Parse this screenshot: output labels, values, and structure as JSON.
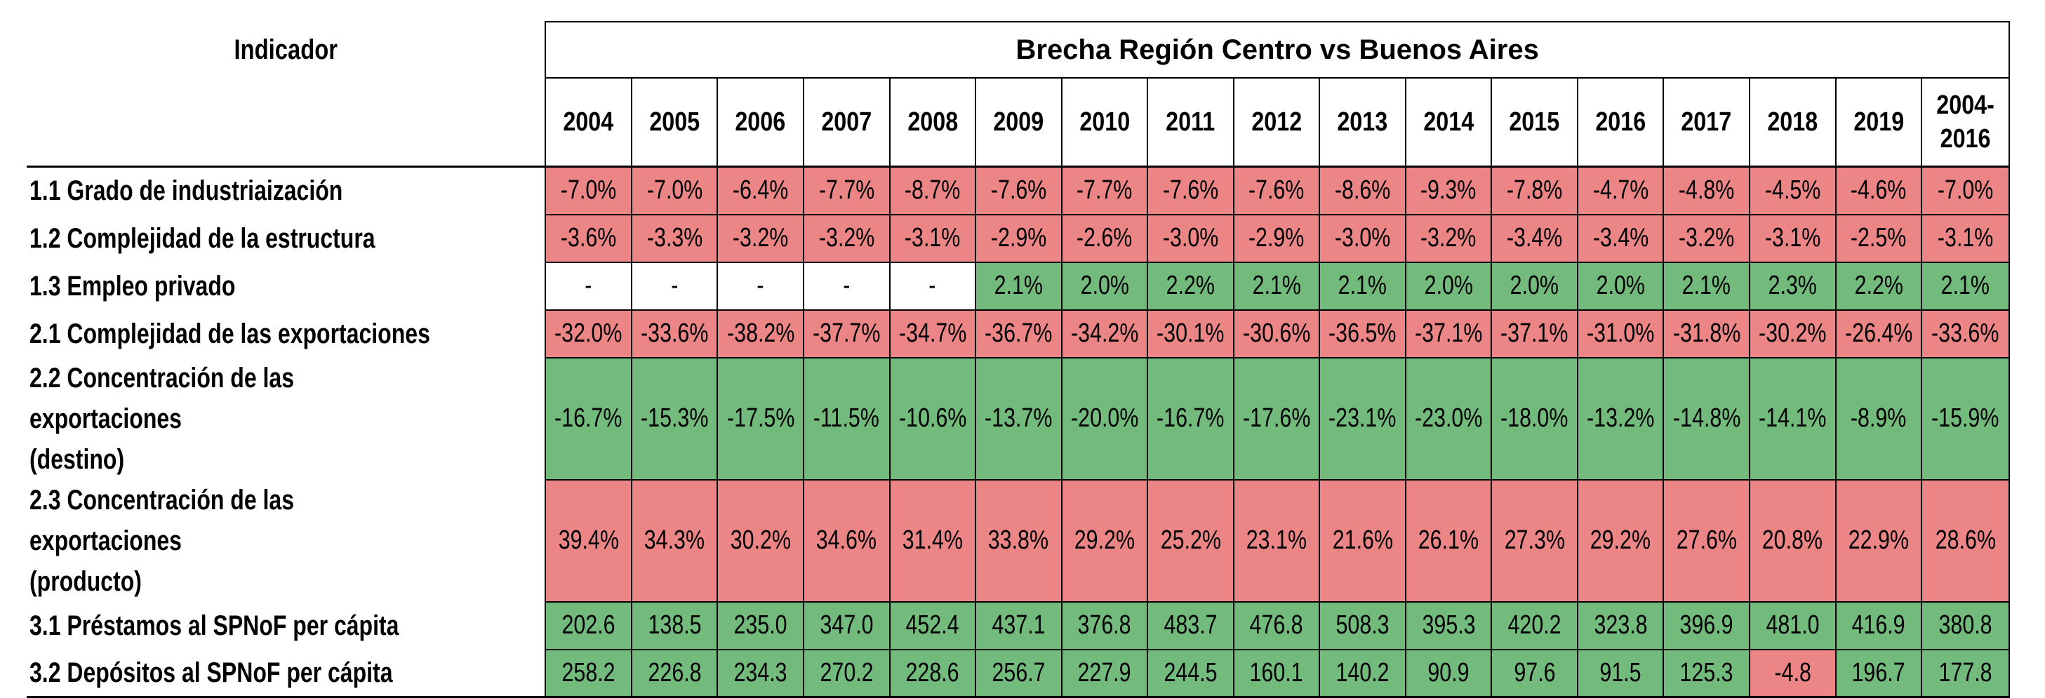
{
  "table": {
    "indicator_header": "Indicador",
    "group_header": "Brecha Región Centro vs Buenos Aires",
    "columns": [
      "2004",
      "2005",
      "2006",
      "2007",
      "2008",
      "2009",
      "2010",
      "2011",
      "2012",
      "2013",
      "2014",
      "2015",
      "2016",
      "2017",
      "2018",
      "2019",
      "2004-\n2016"
    ],
    "colors": {
      "red": "#ec8585",
      "green": "#72bb7c",
      "white": "#ffffff"
    },
    "rows": [
      {
        "label": "1.1 Grado de industriaización",
        "values": [
          "-7.0%",
          "-7.0%",
          "-6.4%",
          "-7.7%",
          "-8.7%",
          "-7.6%",
          "-7.7%",
          "-7.6%",
          "-7.6%",
          "-8.6%",
          "-9.3%",
          "-7.8%",
          "-4.7%",
          "-4.8%",
          "-4.5%",
          "-4.6%",
          "-7.0%"
        ],
        "colors": [
          "red",
          "red",
          "red",
          "red",
          "red",
          "red",
          "red",
          "red",
          "red",
          "red",
          "red",
          "red",
          "red",
          "red",
          "red",
          "red",
          "red"
        ]
      },
      {
        "label": "1.2 Complejidad de la estructura",
        "values": [
          "-3.6%",
          "-3.3%",
          "-3.2%",
          "-3.2%",
          "-3.1%",
          "-2.9%",
          "-2.6%",
          "-3.0%",
          "-2.9%",
          "-3.0%",
          "-3.2%",
          "-3.4%",
          "-3.4%",
          "-3.2%",
          "-3.1%",
          "-2.5%",
          "-3.1%"
        ],
        "colors": [
          "red",
          "red",
          "red",
          "red",
          "red",
          "red",
          "red",
          "red",
          "red",
          "red",
          "red",
          "red",
          "red",
          "red",
          "red",
          "red",
          "red"
        ]
      },
      {
        "label": "1.3 Empleo privado",
        "values": [
          "-",
          "-",
          "-",
          "-",
          "-",
          "2.1%",
          "2.0%",
          "2.2%",
          "2.1%",
          "2.1%",
          "2.0%",
          "2.0%",
          "2.0%",
          "2.1%",
          "2.3%",
          "2.2%",
          "2.1%"
        ],
        "colors": [
          "white",
          "white",
          "white",
          "white",
          "white",
          "green",
          "green",
          "green",
          "green",
          "green",
          "green",
          "green",
          "green",
          "green",
          "green",
          "green",
          "green"
        ]
      },
      {
        "label": "2.1 Complejidad de las exportaciones",
        "values": [
          "-32.0%",
          "-33.6%",
          "-38.2%",
          "-37.7%",
          "-34.7%",
          "-36.7%",
          "-34.2%",
          "-30.1%",
          "-30.6%",
          "-36.5%",
          "-37.1%",
          "-37.1%",
          "-31.0%",
          "-31.8%",
          "-30.2%",
          "-26.4%",
          "-33.6%"
        ],
        "colors": [
          "red",
          "red",
          "red",
          "red",
          "red",
          "red",
          "red",
          "red",
          "red",
          "red",
          "red",
          "red",
          "red",
          "red",
          "red",
          "red",
          "red"
        ]
      },
      {
        "label": "2.2 Concentración de las exportaciones\n(destino)",
        "values": [
          "-16.7%",
          "-15.3%",
          "-17.5%",
          "-11.5%",
          "-10.6%",
          "-13.7%",
          "-20.0%",
          "-16.7%",
          "-17.6%",
          "-23.1%",
          "-23.0%",
          "-18.0%",
          "-13.2%",
          "-14.8%",
          "-14.1%",
          "-8.9%",
          "-15.9%"
        ],
        "colors": [
          "green",
          "green",
          "green",
          "green",
          "green",
          "green",
          "green",
          "green",
          "green",
          "green",
          "green",
          "green",
          "green",
          "green",
          "green",
          "green",
          "green"
        ]
      },
      {
        "label": "2.3 Concentración de las exportaciones\n(producto)",
        "values": [
          "39.4%",
          "34.3%",
          "30.2%",
          "34.6%",
          "31.4%",
          "33.8%",
          "29.2%",
          "25.2%",
          "23.1%",
          "21.6%",
          "26.1%",
          "27.3%",
          "29.2%",
          "27.6%",
          "20.8%",
          "22.9%",
          "28.6%"
        ],
        "colors": [
          "red",
          "red",
          "red",
          "red",
          "red",
          "red",
          "red",
          "red",
          "red",
          "red",
          "red",
          "red",
          "red",
          "red",
          "red",
          "red",
          "red"
        ]
      },
      {
        "label": "3.1 Préstamos al SPNoF per cápita",
        "values": [
          "202.6",
          "138.5",
          "235.0",
          "347.0",
          "452.4",
          "437.1",
          "376.8",
          "483.7",
          "476.8",
          "508.3",
          "395.3",
          "420.2",
          "323.8",
          "396.9",
          "481.0",
          "416.9",
          "380.8"
        ],
        "colors": [
          "green",
          "green",
          "green",
          "green",
          "green",
          "green",
          "green",
          "green",
          "green",
          "green",
          "green",
          "green",
          "green",
          "green",
          "green",
          "green",
          "green"
        ]
      },
      {
        "label": "3.2 Depósitos al SPNoF per cápita",
        "values": [
          "258.2",
          "226.8",
          "234.3",
          "270.2",
          "228.6",
          "256.7",
          "227.9",
          "244.5",
          "160.1",
          "140.2",
          "90.9",
          "97.6",
          "91.5",
          "125.3",
          "-4.8",
          "196.7",
          "177.8"
        ],
        "colors": [
          "green",
          "green",
          "green",
          "green",
          "green",
          "green",
          "green",
          "green",
          "green",
          "green",
          "green",
          "green",
          "green",
          "green",
          "red",
          "green",
          "green"
        ]
      }
    ]
  }
}
